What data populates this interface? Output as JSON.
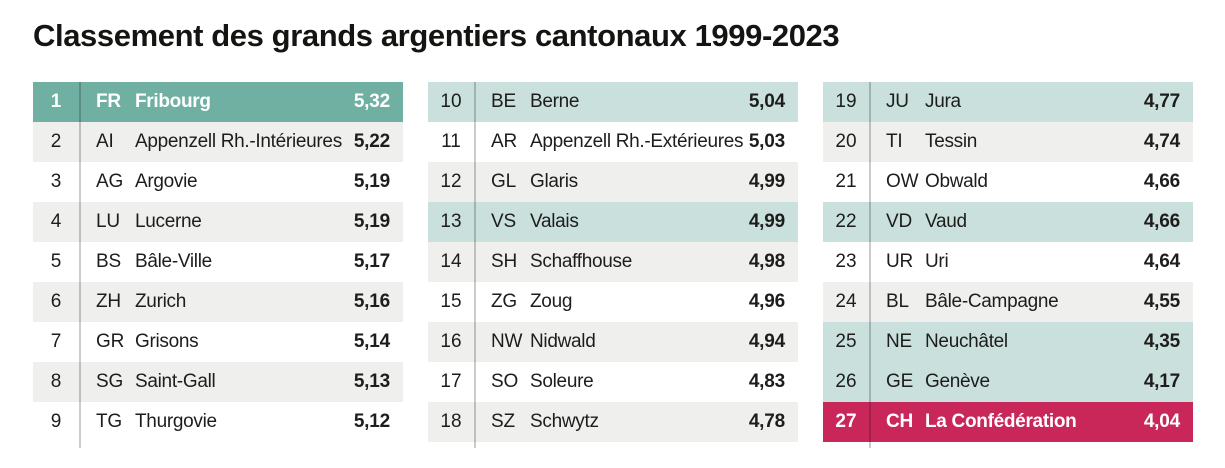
{
  "title": "Classement des grands argentiers cantonaux 1999-2023",
  "colors": {
    "leader_bg": "#70b0a3",
    "french_bg": "#c9e0dc",
    "federal_bg": "#c9265a",
    "stripe_bg": "#efefed",
    "row_bg": "#ffffff",
    "text": "#1d1d1b",
    "highlight_text": "#ffffff",
    "divider": "rgba(20,20,20,0.22)"
  },
  "chart_data": {
    "type": "table",
    "title": "Classement des grands argentiers cantonaux 1999-2023",
    "columns": [
      "rank",
      "canton_code",
      "canton_name",
      "score"
    ],
    "legend_note": "",
    "rows": [
      {
        "rank": "1",
        "code": "FR",
        "name": "Fribourg",
        "value": "5,32",
        "highlight": "leader"
      },
      {
        "rank": "2",
        "code": "AI",
        "name": "Appenzell Rh.-Intérieures",
        "value": "5,22",
        "highlight": "none"
      },
      {
        "rank": "3",
        "code": "AG",
        "name": "Argovie",
        "value": "5,19",
        "highlight": "none"
      },
      {
        "rank": "4",
        "code": "LU",
        "name": "Lucerne",
        "value": "5,19",
        "highlight": "none"
      },
      {
        "rank": "5",
        "code": "BS",
        "name": "Bâle-Ville",
        "value": "5,17",
        "highlight": "none"
      },
      {
        "rank": "6",
        "code": "ZH",
        "name": "Zurich",
        "value": "5,16",
        "highlight": "none"
      },
      {
        "rank": "7",
        "code": "GR",
        "name": "Grisons",
        "value": "5,14",
        "highlight": "none"
      },
      {
        "rank": "8",
        "code": "SG",
        "name": "Saint-Gall",
        "value": "5,13",
        "highlight": "none"
      },
      {
        "rank": "9",
        "code": "TG",
        "name": "Thurgovie",
        "value": "5,12",
        "highlight": "none"
      },
      {
        "rank": "10",
        "code": "BE",
        "name": "Berne",
        "value": "5,04",
        "highlight": "french"
      },
      {
        "rank": "11",
        "code": "AR",
        "name": "Appenzell Rh.-Extérieures",
        "value": "5,03",
        "highlight": "none"
      },
      {
        "rank": "12",
        "code": "GL",
        "name": "Glaris",
        "value": "4,99",
        "highlight": "none"
      },
      {
        "rank": "13",
        "code": "VS",
        "name": "Valais",
        "value": "4,99",
        "highlight": "french"
      },
      {
        "rank": "14",
        "code": "SH",
        "name": "Schaffhouse",
        "value": "4,98",
        "highlight": "none"
      },
      {
        "rank": "15",
        "code": "ZG",
        "name": "Zoug",
        "value": "4,96",
        "highlight": "none"
      },
      {
        "rank": "16",
        "code": "NW",
        "name": "Nidwald",
        "value": "4,94",
        "highlight": "none"
      },
      {
        "rank": "17",
        "code": "SO",
        "name": "Soleure",
        "value": "4,83",
        "highlight": "none"
      },
      {
        "rank": "18",
        "code": "SZ",
        "name": "Schwytz",
        "value": "4,78",
        "highlight": "none"
      },
      {
        "rank": "19",
        "code": "JU",
        "name": "Jura",
        "value": "4,77",
        "highlight": "french"
      },
      {
        "rank": "20",
        "code": "TI",
        "name": "Tessin",
        "value": "4,74",
        "highlight": "none"
      },
      {
        "rank": "21",
        "code": "OW",
        "name": "Obwald",
        "value": "4,66",
        "highlight": "none"
      },
      {
        "rank": "22",
        "code": "VD",
        "name": "Vaud",
        "value": "4,66",
        "highlight": "french"
      },
      {
        "rank": "23",
        "code": "UR",
        "name": "Uri",
        "value": "4,64",
        "highlight": "none"
      },
      {
        "rank": "24",
        "code": "BL",
        "name": "Bâle-Campagne",
        "value": "4,55",
        "highlight": "none"
      },
      {
        "rank": "25",
        "code": "NE",
        "name": "Neuchâtel",
        "value": "4,35",
        "highlight": "french"
      },
      {
        "rank": "26",
        "code": "GE",
        "name": "Genève",
        "value": "4,17",
        "highlight": "french"
      },
      {
        "rank": "27",
        "code": "CH",
        "name": "La Confédération",
        "value": "4,04",
        "highlight": "federal"
      }
    ],
    "layout": {
      "blocks": 3,
      "rows_per_block": 9,
      "row_striping": "even ranks light gray, odd ranks white",
      "teal_rows_meaning": "rows shaded teal",
      "ylim": null
    }
  }
}
